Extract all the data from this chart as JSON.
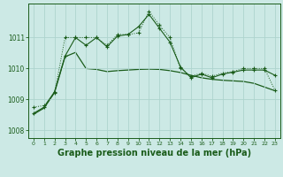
{
  "background_color": "#cce9e5",
  "grid_color": "#aed4ce",
  "line_color": "#1a5c1a",
  "xlabel": "Graphe pression niveau de la mer (hPa)",
  "xlabel_fontsize": 7,
  "xlim": [
    -0.5,
    23.5
  ],
  "ylim": [
    1007.75,
    1012.1
  ],
  "yticks": [
    1008,
    1009,
    1010,
    1011
  ],
  "xticks": [
    0,
    1,
    2,
    3,
    4,
    5,
    6,
    7,
    8,
    9,
    10,
    11,
    12,
    13,
    14,
    15,
    16,
    17,
    18,
    19,
    20,
    21,
    22,
    23
  ],
  "series1_x": [
    0,
    1,
    2,
    3,
    4,
    5,
    6,
    7,
    8,
    9,
    10,
    11,
    12,
    13,
    14,
    15,
    16,
    17,
    18,
    19,
    20,
    21,
    22,
    23
  ],
  "series1_y": [
    1008.75,
    1008.8,
    1009.2,
    1011.0,
    1011.0,
    1011.0,
    1011.0,
    1010.75,
    1011.1,
    1011.1,
    1011.15,
    1011.85,
    1011.4,
    1011.0,
    1010.0,
    1009.75,
    1009.85,
    1009.75,
    1009.85,
    1009.9,
    1010.0,
    1010.0,
    1010.0,
    1009.3
  ],
  "series2_x": [
    0,
    1,
    2,
    3,
    4,
    5,
    6,
    7,
    8,
    9,
    10,
    11,
    12,
    13,
    14,
    15,
    16,
    17,
    18,
    19,
    20,
    21,
    22,
    23
  ],
  "series2_y": [
    1008.55,
    1008.75,
    1009.25,
    1010.4,
    1011.0,
    1010.75,
    1011.0,
    1010.7,
    1011.05,
    1011.1,
    1011.35,
    1011.75,
    1011.3,
    1010.85,
    1010.05,
    1009.7,
    1009.82,
    1009.7,
    1009.82,
    1009.88,
    1009.95,
    1009.95,
    1009.95,
    1009.78
  ],
  "smooth_x": [
    0,
    1,
    2,
    3,
    4,
    5,
    6,
    7,
    8,
    9,
    10,
    11,
    12,
    13,
    14,
    15,
    16,
    17,
    18,
    19,
    20,
    21,
    22,
    23
  ],
  "smooth_y": [
    1008.52,
    1008.72,
    1009.22,
    1010.38,
    1010.52,
    1010.0,
    1009.97,
    1009.9,
    1009.93,
    1009.95,
    1009.97,
    1009.98,
    1009.97,
    1009.93,
    1009.87,
    1009.78,
    1009.7,
    1009.65,
    1009.62,
    1009.6,
    1009.58,
    1009.52,
    1009.4,
    1009.28
  ]
}
